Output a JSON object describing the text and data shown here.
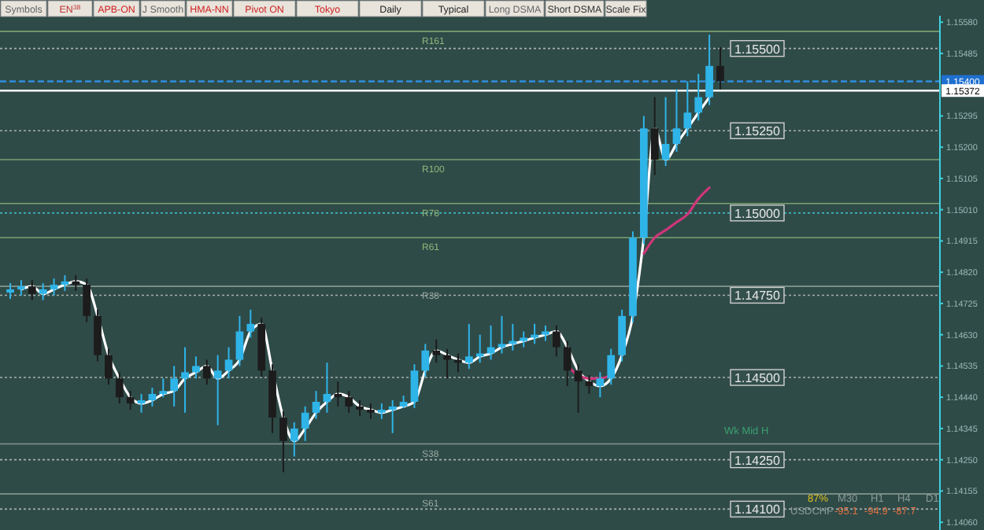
{
  "chart_data": {
    "type": "candlestick",
    "categories": [
      null,
      null,
      null,
      null,
      null,
      null,
      null,
      null,
      null,
      null,
      null,
      null,
      null,
      null,
      null,
      null,
      null,
      null,
      null,
      null,
      null,
      null,
      null,
      null,
      null,
      null,
      null,
      null,
      null,
      null,
      null,
      null,
      null,
      null,
      null,
      null,
      null,
      null,
      null,
      null,
      null,
      null,
      null,
      null,
      null,
      null,
      null,
      null,
      null,
      null,
      null,
      null,
      null,
      null,
      null,
      null,
      null,
      null,
      null,
      null,
      null,
      null,
      null,
      null,
      null,
      null
    ],
    "ohlc": [
      [
        1.14758,
        1.14787,
        1.14739,
        1.14768
      ],
      [
        1.14768,
        1.14796,
        1.14749,
        1.14777
      ],
      [
        1.14777,
        1.14796,
        1.14735,
        1.14754
      ],
      [
        1.14754,
        1.14787,
        1.14735,
        1.14768
      ],
      [
        1.14768,
        1.14801,
        1.14749,
        1.14782
      ],
      [
        1.14782,
        1.14811,
        1.14763,
        1.14792
      ],
      [
        1.14792,
        1.14811,
        1.14763,
        1.14782
      ],
      [
        1.14782,
        1.14801,
        1.14668,
        1.14687
      ],
      [
        1.14687,
        1.14706,
        1.14549,
        1.14568
      ],
      [
        1.14568,
        1.14587,
        1.14478,
        1.14497
      ],
      [
        1.14497,
        1.14516,
        1.14421,
        1.1444
      ],
      [
        1.1444,
        1.14459,
        1.14402,
        1.14421
      ],
      [
        1.14421,
        1.1445,
        1.14393,
        1.14431
      ],
      [
        1.14431,
        1.14469,
        1.14412,
        1.1445
      ],
      [
        1.1445,
        1.14497,
        1.1444,
        1.14459
      ],
      [
        1.14459,
        1.14535,
        1.14412,
        1.14497
      ],
      [
        1.14497,
        1.14592,
        1.14393,
        1.14516
      ],
      [
        1.14516,
        1.14564,
        1.14497,
        1.14535
      ],
      [
        1.14535,
        1.14554,
        1.14478,
        1.14497
      ],
      [
        1.14497,
        1.14568,
        1.14355,
        1.14521
      ],
      [
        1.14521,
        1.14592,
        1.14497,
        1.14554
      ],
      [
        1.14554,
        1.14687,
        1.14535,
        1.1464
      ],
      [
        1.1464,
        1.14706,
        1.14621,
        1.14663
      ],
      [
        1.14663,
        1.14682,
        1.14502,
        1.14521
      ],
      [
        1.14521,
        1.1454,
        1.14331,
        1.14378
      ],
      [
        1.14378,
        1.14397,
        1.14212,
        1.14307
      ],
      [
        1.14307,
        1.14364,
        1.1426,
        1.14345
      ],
      [
        1.14345,
        1.14412,
        1.14307,
        1.14393
      ],
      [
        1.14393,
        1.14459,
        1.14374,
        1.14426
      ],
      [
        1.14426,
        1.14545,
        1.14393,
        1.1445
      ],
      [
        1.1445,
        1.14488,
        1.14412,
        1.1444
      ],
      [
        1.1444,
        1.14459,
        1.14393,
        1.14412
      ],
      [
        1.14412,
        1.14431,
        1.14383,
        1.14402
      ],
      [
        1.14402,
        1.14421,
        1.14374,
        1.14393
      ],
      [
        1.14393,
        1.14421,
        1.14374,
        1.14402
      ],
      [
        1.14402,
        1.14431,
        1.14331,
        1.14412
      ],
      [
        1.14412,
        1.14445,
        1.14407,
        1.14426
      ],
      [
        1.14426,
        1.1454,
        1.14407,
        1.14521
      ],
      [
        1.14521,
        1.14602,
        1.14502,
        1.14582
      ],
      [
        1.14582,
        1.14616,
        1.14545,
        1.14568
      ],
      [
        1.14568,
        1.14587,
        1.14497,
        1.14554
      ],
      [
        1.14554,
        1.14573,
        1.14516,
        1.14545
      ],
      [
        1.14545,
        1.14663,
        1.14526,
        1.14564
      ],
      [
        1.14564,
        1.1463,
        1.14545,
        1.14573
      ],
      [
        1.14573,
        1.14658,
        1.14554,
        1.14592
      ],
      [
        1.14592,
        1.14687,
        1.14573,
        1.14602
      ],
      [
        1.14602,
        1.14663,
        1.14582,
        1.14611
      ],
      [
        1.14611,
        1.1464,
        1.14592,
        1.14621
      ],
      [
        1.14621,
        1.14663,
        1.14602,
        1.1463
      ],
      [
        1.1463,
        1.14658,
        1.14611,
        1.1464
      ],
      [
        1.1464,
        1.14658,
        1.14564,
        1.14592
      ],
      [
        1.14592,
        1.14611,
        1.14474,
        1.14521
      ],
      [
        1.14521,
        1.1454,
        1.14393,
        1.14488
      ],
      [
        1.14488,
        1.14507,
        1.1445,
        1.14474
      ],
      [
        1.14474,
        1.14516,
        1.1444,
        1.14497
      ],
      [
        1.14497,
        1.14587,
        1.14478,
        1.14568
      ],
      [
        1.14568,
        1.14706,
        1.14549,
        1.14687
      ],
      [
        1.14687,
        1.14944,
        1.14668,
        1.14925
      ],
      [
        1.14925,
        1.15295,
        1.14906,
        1.15257
      ],
      [
        1.15257,
        1.15352,
        1.15115,
        1.15162
      ],
      [
        1.15162,
        1.15352,
        1.15143,
        1.1521
      ],
      [
        1.1521,
        1.15376,
        1.15186,
        1.15257
      ],
      [
        1.15257,
        1.154,
        1.15233,
        1.15305
      ],
      [
        1.15305,
        1.15423,
        1.15281,
        1.15352
      ],
      [
        1.15352,
        1.15542,
        1.15328,
        1.15447
      ],
      [
        1.15447,
        1.15504,
        1.15376,
        1.154
      ]
    ],
    "colors": [
      "#2fb4e8",
      "#2fb4e8",
      "#1c1c1c",
      "#2fb4e8",
      "#2fb4e8",
      "#2fb4e8",
      "#1c1c1c",
      "#1c1c1c",
      "#1c1c1c",
      "#1c1c1c",
      "#1c1c1c",
      "#1c1c1c",
      "#2fb4e8",
      "#2fb4e8",
      "#2fb4e8",
      "#2fb4e8",
      "#2fb4e8",
      "#2fb4e8",
      "#1c1c1c",
      "#2fb4e8",
      "#2fb4e8",
      "#2fb4e8",
      "#2fb4e8",
      "#1c1c1c",
      "#1c1c1c",
      "#1c1c1c",
      "#2fb4e8",
      "#2fb4e8",
      "#2fb4e8",
      "#2fb4e8",
      "#1c1c1c",
      "#1c1c1c",
      "#1c1c1c",
      "#1c1c1c",
      "#2fb4e8",
      "#2fb4e8",
      "#2fb4e8",
      "#2fb4e8",
      "#2fb4e8",
      "#1c1c1c",
      "#1c1c1c",
      "#1c1c1c",
      "#2fb4e8",
      "#2fb4e8",
      "#2fb4e8",
      "#2fb4e8",
      "#2fb4e8",
      "#2fb4e8",
      "#2fb4e8",
      "#2fb4e8",
      "#1c1c1c",
      "#1c1c1c",
      "#1c1c1c",
      "#1c1c1c",
      "#2fb4e8",
      "#2fb4e8",
      "#2fb4e8",
      "#2fb4e8",
      "#2fb4e8",
      "#1c1c1c",
      "#2fb4e8",
      "#2fb4e8",
      "#2fb4e8",
      "#2fb4e8",
      "#2fb4e8",
      "#1c1c1c"
    ],
    "series": [
      {
        "type": "line",
        "color": "#ffffff",
        "values": [
          null,
          1.14768,
          1.14777,
          1.14754,
          1.14768,
          1.14782,
          1.14792,
          1.14782,
          1.14687,
          1.14568,
          1.14497,
          1.1444,
          1.14421,
          1.14431,
          1.1445,
          1.14459,
          1.14497,
          1.14516,
          1.14535,
          1.14497,
          1.14521,
          1.14554,
          1.1464,
          1.14663,
          1.14521,
          1.14378,
          1.14307,
          1.14345,
          1.14393,
          1.14426,
          1.1445,
          1.1444,
          1.14412,
          1.14402,
          1.14393,
          1.14402,
          1.14412,
          1.14426,
          1.14521,
          1.14582,
          1.14568,
          1.14554,
          1.14545,
          1.14564,
          1.14573,
          1.14592,
          1.14602,
          1.14611,
          1.14621,
          1.1463,
          1.1464,
          1.14592,
          1.14521,
          1.14488,
          1.14474,
          1.14497,
          1.14568,
          1.14687,
          1.14925,
          1.15257,
          1.15162,
          1.1521,
          1.15257,
          1.15305,
          1.15352,
          null
        ]
      },
      {
        "type": "line",
        "color": "#d0357a",
        "values": [
          null,
          null,
          null,
          null,
          null,
          null,
          null,
          null,
          null,
          null,
          null,
          null,
          null,
          null,
          null,
          null,
          null,
          null,
          null,
          null,
          null,
          null,
          null,
          null,
          null,
          null,
          null,
          null,
          null,
          null,
          null,
          null,
          null,
          null,
          null,
          null,
          null,
          null,
          null,
          null,
          null,
          null,
          null,
          null,
          null,
          null,
          null,
          null,
          null,
          null,
          null,
          1.14535,
          1.14507,
          1.14497,
          1.14497,
          1.14507,
          null,
          null,
          1.14877,
          1.14925,
          1.14948,
          1.14972,
          1.14996,
          1.15043,
          1.15077,
          null
        ]
      }
    ],
    "ylim": [
      1.14046,
      1.1559
    ],
    "yticks": [
      {
        "value": 1.1558,
        "label": "1.15580"
      },
      {
        "value": 1.15485,
        "label": "1.15485"
      },
      {
        "value": 1.15295,
        "label": "1.15295"
      },
      {
        "value": 1.152,
        "label": "1.15200"
      },
      {
        "value": 1.15105,
        "label": "1.15105"
      },
      {
        "value": 1.1501,
        "label": "1.15010"
      },
      {
        "value": 1.14915,
        "label": "1.14915"
      },
      {
        "value": 1.1482,
        "label": "1.14820"
      },
      {
        "value": 1.14725,
        "label": "1.14725"
      },
      {
        "value": 1.1463,
        "label": "1.14630"
      },
      {
        "value": 1.14535,
        "label": "1.14535"
      },
      {
        "value": 1.1444,
        "label": "1.14440"
      },
      {
        "value": 1.14345,
        "label": "1.14345"
      },
      {
        "value": 1.1425,
        "label": "1.14250"
      },
      {
        "value": 1.14155,
        "label": "1.14155"
      },
      {
        "value": 1.1406,
        "label": "1.14060"
      }
    ],
    "tick_labels": "y",
    "legend": false,
    "ref_lines": [
      {
        "axis": "y",
        "value": 1.155,
        "label": "1.15500",
        "color": "#c8c8c8",
        "line_style": "dotted"
      },
      {
        "axis": "y",
        "value": 1.1525,
        "label": "1.15250",
        "color": "#c8c8c8",
        "line_style": "dotted"
      },
      {
        "axis": "y",
        "value": 1.15,
        "label": "1.15000",
        "color": "#3fd0e0",
        "line_style": "dotted"
      },
      {
        "axis": "y",
        "value": 1.1475,
        "label": "1.14750",
        "color": "#c8c8c8",
        "line_style": "dotted"
      },
      {
        "axis": "y",
        "value": 1.145,
        "label": "1.14500",
        "color": "#c8c8c8",
        "line_style": "dotted"
      },
      {
        "axis": "y",
        "value": 1.1425,
        "label": "1.14250",
        "color": "#c8c8c8",
        "line_style": "dotted"
      },
      {
        "axis": "y",
        "value": 1.141,
        "label": "1.14100",
        "color": "#c8c8c8",
        "line_style": "dotted"
      },
      {
        "axis": "y",
        "value": 1.154,
        "label": "1.15400",
        "color": "#2f8fe0",
        "line_style": "dashed"
      },
      {
        "axis": "y",
        "value": 1.15372,
        "label": "1.15372",
        "color": "#ffffff",
        "line_style": "solid"
      },
      {
        "axis": "y",
        "value": 1.15552,
        "label": "R161",
        "color": "#8fb87a",
        "line_style": "solid"
      },
      {
        "axis": "y",
        "value": 1.15162,
        "label": "R100",
        "color": "#8fb87a",
        "line_style": "solid"
      },
      {
        "axis": "y",
        "value": 1.15029,
        "label": "R78",
        "color": "#8fb87a",
        "line_style": "solid"
      },
      {
        "axis": "y",
        "value": 1.14925,
        "label": "R61",
        "color": "#8fb87a",
        "line_style": "solid"
      },
      {
        "axis": "y",
        "value": 1.14777,
        "label": "R38",
        "color": "#9aa8a0",
        "line_style": "solid"
      },
      {
        "axis": "y",
        "value": 1.14298,
        "label": "S38",
        "color": "#9aa8a0",
        "line_style": "solid"
      },
      {
        "axis": "y",
        "value": 1.14146,
        "label": "S61",
        "color": "#9aa8a0",
        "line_style": "solid"
      }
    ],
    "annotations": [
      "Symbols",
      "EN$^{38}$",
      "APB-ON",
      "J Smooth",
      "HMA-NN",
      "Pivot ON",
      "Tokyo",
      "Daily",
      "Typical",
      "Long DSMA",
      "Short DSMA",
      "Scale Fix",
      "Wk Mid H",
      "87%",
      "M30",
      "H1",
      "H4",
      "D1",
      "USDCHF",
      "-95.1",
      "-94.9",
      "-87.7"
    ]
  }
}
